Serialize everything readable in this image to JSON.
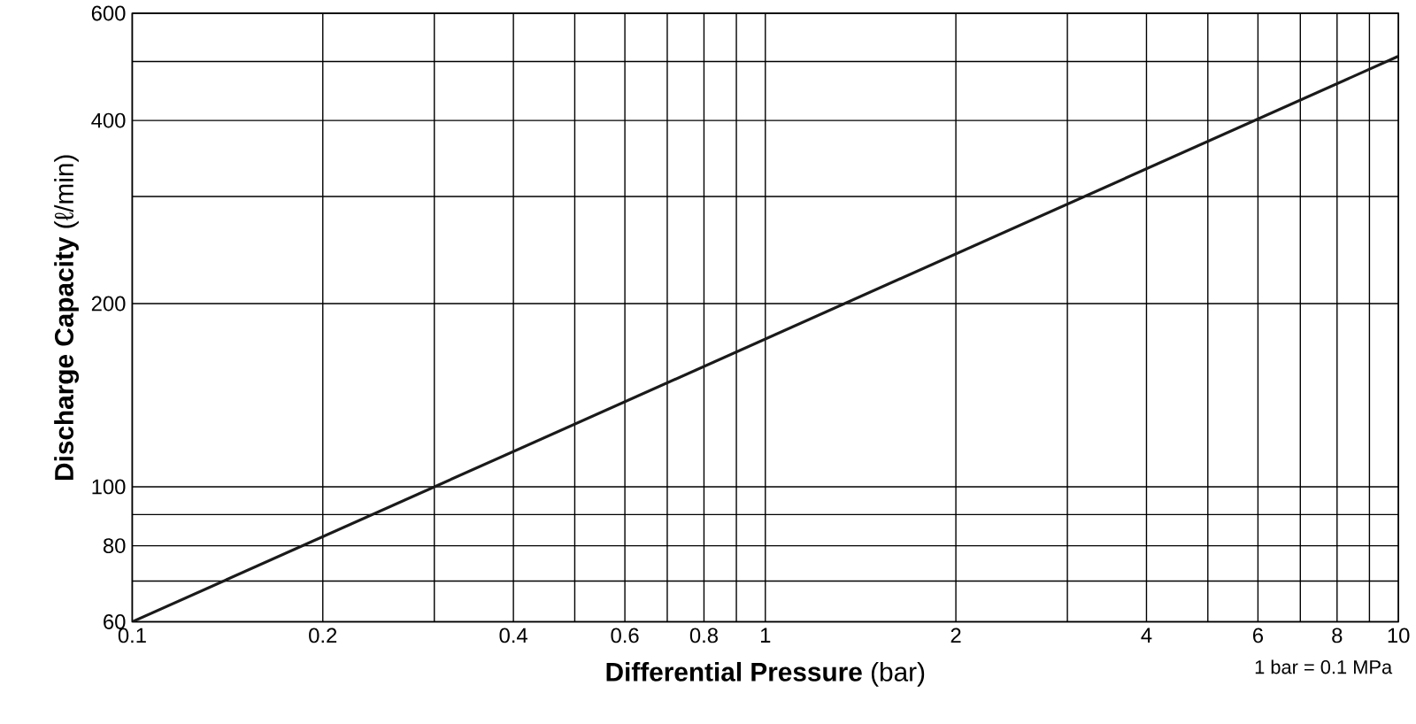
{
  "chart_data": {
    "type": "line",
    "xlabel": "**Differential Pressure** (bar)",
    "ylabel": "**Discharge Capacity** (ℓ/min)",
    "annotations": [
      "1 bar = 0.1 MPa"
    ],
    "x": [
      0.1,
      10
    ],
    "series": [
      {
        "color": "#1a1a1a",
        "values": [
          60,
          510
        ]
      }
    ],
    "log": "xy",
    "grid": true,
    "marker": "none",
    "line_style": "solid",
    "xlim": [
      0.1,
      10
    ],
    "ylim": [
      60,
      600
    ],
    "xticks": [
      0.1,
      0.2,
      {
        "value": 0.3,
        "label": null
      },
      0.4,
      {
        "value": 0.5,
        "label": null
      },
      0.6,
      {
        "value": 0.7,
        "label": null
      },
      0.8,
      {
        "value": 0.9,
        "label": null
      },
      1,
      2,
      {
        "value": 3,
        "label": null
      },
      4,
      {
        "value": 5,
        "label": null
      },
      6,
      {
        "value": 7,
        "label": null
      },
      8,
      {
        "value": 9,
        "label": null
      },
      10
    ],
    "yticks": [
      60,
      {
        "value": 70,
        "label": null
      },
      80,
      {
        "value": 90,
        "label": null
      },
      100,
      200,
      {
        "value": 300,
        "label": null
      },
      400,
      {
        "value": 500,
        "label": null
      },
      600
    ]
  }
}
